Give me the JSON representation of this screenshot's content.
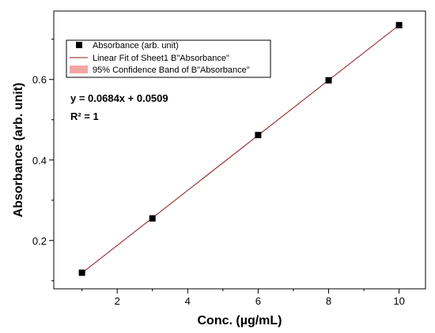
{
  "chart_data": {
    "type": "scatter",
    "xlabel": "Conc. (µg/mL)",
    "ylabel": "Absorbance (arb. unit)",
    "xlim": [
      0.2,
      10.75
    ],
    "ylim": [
      0.08,
      0.77
    ],
    "x_ticks": [
      2,
      4,
      6,
      8,
      10
    ],
    "y_ticks": [
      0.2,
      0.4,
      0.6
    ],
    "x_tick_labels": [
      "2",
      "4",
      "6",
      "8",
      "10"
    ],
    "y_tick_labels": [
      "0.2",
      "0.4",
      "0.6"
    ],
    "grid": false,
    "legend_position": "top-left",
    "series": [
      {
        "name": "Absorbance (arb. unit)",
        "kind": "scatter",
        "marker": "square",
        "color": "#000000",
        "x": [
          1,
          3,
          6,
          8,
          10
        ],
        "y": [
          0.12,
          0.255,
          0.462,
          0.598,
          0.735
        ]
      },
      {
        "name": "Linear Fit of Sheet1 B\"Absorbance\"",
        "kind": "line",
        "color": "#8b1a1a",
        "slope": 0.0684,
        "intercept": 0.0509,
        "x_range": [
          1,
          10
        ]
      },
      {
        "name": "95% Confidence Band of B\"Absorbance\"",
        "kind": "band",
        "color": "#f4a6a6"
      }
    ],
    "annotations": [
      {
        "key": "equation",
        "text": "y = 0.0684x + 0.0509"
      },
      {
        "key": "r2",
        "text": "R² = 1"
      }
    ]
  }
}
